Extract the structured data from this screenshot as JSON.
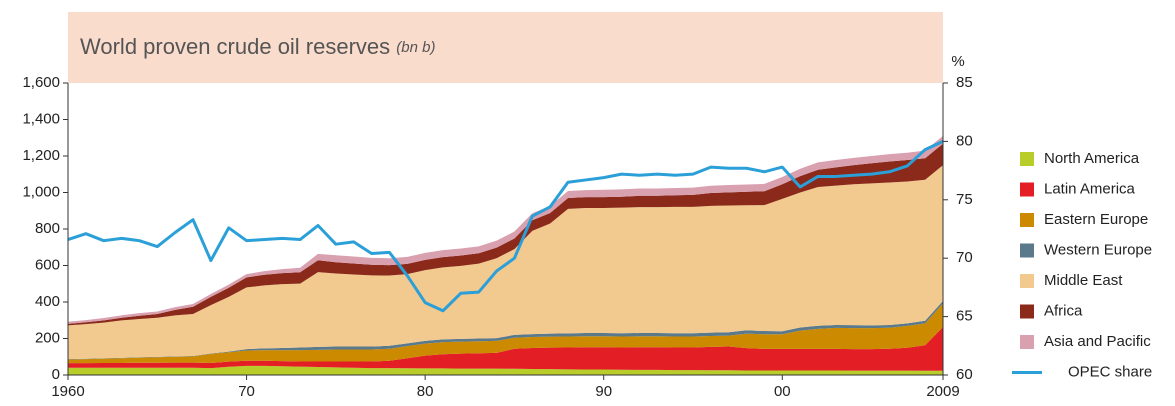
{
  "chart_data": {
    "type": "stacked_area",
    "title": "World proven crude oil reserves",
    "title_unit": "(bn b)",
    "y2_label": "%",
    "x": [
      1960,
      1961,
      1962,
      1963,
      1964,
      1965,
      1966,
      1967,
      1968,
      1969,
      1970,
      1971,
      1972,
      1973,
      1974,
      1975,
      1976,
      1977,
      1978,
      1979,
      1980,
      1981,
      1982,
      1983,
      1984,
      1985,
      1986,
      1987,
      1988,
      1989,
      1990,
      1991,
      1992,
      1993,
      1994,
      1995,
      1996,
      1997,
      1998,
      1999,
      2000,
      2001,
      2002,
      2003,
      2004,
      2005,
      2006,
      2007,
      2008,
      2009
    ],
    "xlim": [
      1960,
      2009
    ],
    "xticks": [
      1960,
      {
        "value": 1970,
        "label": "70"
      },
      {
        "value": 1980,
        "label": "80"
      },
      {
        "value": 1990,
        "label": "90"
      },
      {
        "value": 2000,
        "label": "00"
      },
      2009
    ],
    "ylim": [
      0,
      1600
    ],
    "yticks": [
      0,
      200,
      400,
      600,
      800,
      {
        "value": 1000,
        "label": "1,000"
      },
      {
        "value": 1200,
        "label": "1,200"
      },
      {
        "value": 1400,
        "label": "1,400"
      },
      {
        "value": 1600,
        "label": "1,600"
      }
    ],
    "y2lim": [
      60,
      85
    ],
    "y2ticks": [
      60,
      65,
      70,
      75,
      80,
      85
    ],
    "legend": "right",
    "series": [
      {
        "name": "North America",
        "color": "#b8cc2a",
        "values": [
          40,
          40,
          40,
          40,
          40,
          40,
          40,
          40,
          38,
          45,
          50,
          50,
          48,
          46,
          44,
          42,
          40,
          38,
          38,
          37,
          36,
          36,
          35,
          35,
          35,
          34,
          33,
          32,
          31,
          30,
          30,
          29,
          28,
          28,
          27,
          27,
          26,
          26,
          25,
          25,
          25,
          25,
          25,
          25,
          24,
          24,
          24,
          24,
          23,
          23
        ]
      },
      {
        "name": "Latin America",
        "color": "#e31e24",
        "values": [
          25,
          25,
          26,
          26,
          27,
          27,
          28,
          28,
          28,
          28,
          28,
          28,
          28,
          28,
          30,
          32,
          34,
          36,
          40,
          55,
          70,
          78,
          82,
          84,
          86,
          110,
          115,
          118,
          120,
          122,
          122,
          122,
          124,
          124,
          124,
          124,
          128,
          130,
          122,
          118,
          118,
          118,
          118,
          118,
          118,
          118,
          120,
          125,
          140,
          240
        ]
      },
      {
        "name": "Eastern Europe",
        "color": "#cc8a00",
        "values": [
          20,
          22,
          24,
          26,
          28,
          30,
          32,
          34,
          50,
          52,
          56,
          58,
          60,
          62,
          64,
          66,
          66,
          66,
          66,
          66,
          66,
          66,
          66,
          66,
          66,
          60,
          60,
          60,
          60,
          60,
          60,
          60,
          60,
          60,
          60,
          60,
          60,
          60,
          80,
          80,
          80,
          100,
          110,
          115,
          115,
          115,
          115,
          120,
          120,
          130
        ]
      },
      {
        "name": "Western Europe",
        "color": "#5a7a8c",
        "values": [
          2,
          2,
          2,
          2,
          2,
          2,
          2,
          2,
          2,
          3,
          8,
          10,
          12,
          15,
          16,
          16,
          16,
          16,
          16,
          15,
          15,
          15,
          15,
          15,
          15,
          16,
          16,
          17,
          17,
          18,
          18,
          18,
          18,
          18,
          18,
          18,
          18,
          18,
          18,
          18,
          17,
          17,
          17,
          16,
          16,
          15,
          15,
          14,
          14,
          13
        ]
      },
      {
        "name": "Middle East",
        "color": "#f2c98f",
        "values": [
          185,
          190,
          195,
          205,
          210,
          215,
          225,
          230,
          265,
          300,
          338,
          345,
          350,
          350,
          410,
          400,
          395,
          390,
          385,
          380,
          388,
          395,
          400,
          410,
          438,
          470,
          566,
          603,
          682,
          685,
          685,
          688,
          690,
          690,
          692,
          692,
          695,
          695,
          685,
          690,
          725,
          740,
          760,
          764,
          772,
          778,
          781,
          777,
          773,
          744
        ]
      },
      {
        "name": "Africa",
        "color": "#8b2a1a",
        "values": [
          8,
          10,
          12,
          15,
          18,
          20,
          30,
          40,
          45,
          50,
          55,
          58,
          60,
          62,
          65,
          62,
          60,
          58,
          57,
          56,
          56,
          56,
          57,
          57,
          58,
          58,
          58,
          58,
          60,
          60,
          60,
          60,
          62,
          62,
          64,
          66,
          70,
          72,
          74,
          76,
          80,
          90,
          95,
          100,
          105,
          110,
          115,
          118,
          118,
          118
        ]
      },
      {
        "name": "Asia and Pacific",
        "color": "#d9a0b0",
        "values": [
          12,
          12,
          13,
          13,
          14,
          14,
          15,
          15,
          16,
          17,
          18,
          20,
          22,
          25,
          35,
          38,
          38,
          38,
          38,
          38,
          38,
          38,
          38,
          38,
          38,
          38,
          38,
          38,
          38,
          38,
          40,
          40,
          40,
          40,
          40,
          40,
          40,
          40,
          40,
          40,
          40,
          40,
          40,
          40,
          40,
          40,
          40,
          40,
          42,
          42
        ]
      },
      {
        "name": "OPEC share",
        "color": "#2a9fd8",
        "axis": "y2",
        "type": "line",
        "values": [
          71.6,
          72.1,
          71.5,
          71.7,
          71.5,
          71.0,
          72.2,
          73.3,
          69.8,
          72.6,
          71.5,
          71.6,
          71.7,
          71.6,
          72.8,
          71.2,
          71.4,
          70.4,
          70.5,
          68.5,
          66.2,
          65.5,
          67.0,
          67.1,
          68.9,
          70.0,
          73.6,
          74.4,
          76.5,
          76.7,
          76.9,
          77.2,
          77.1,
          77.2,
          77.1,
          77.2,
          77.8,
          77.7,
          77.7,
          77.4,
          77.8,
          76.1,
          77.0,
          77.0,
          77.1,
          77.2,
          77.4,
          77.9,
          79.3,
          80.0
        ]
      }
    ]
  }
}
